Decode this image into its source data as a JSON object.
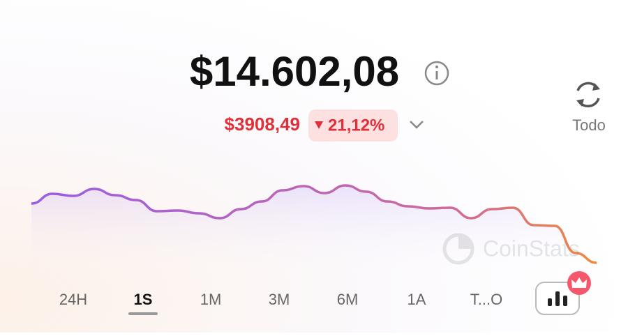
{
  "header": {
    "total": "$14.602,08",
    "change_amount": "$3908,49",
    "change_percent": "21,12%",
    "refresh_label": "Todo"
  },
  "watermark": "CoinStats",
  "chart_data": {
    "type": "line",
    "color_start": "#9b5de5",
    "color_mid": "#d06a9a",
    "color_end": "#f08a3c",
    "values": [
      88,
      102,
      99,
      109,
      100,
      93,
      77,
      78,
      74,
      67,
      80,
      91,
      107,
      113,
      103,
      114,
      105,
      91,
      84,
      81,
      82,
      67,
      80,
      82,
      57,
      56,
      17,
      3
    ]
  },
  "tabs": [
    "24H",
    "1S",
    "1M",
    "3M",
    "6M",
    "1A",
    "T...O"
  ],
  "selected_tab": 1
}
